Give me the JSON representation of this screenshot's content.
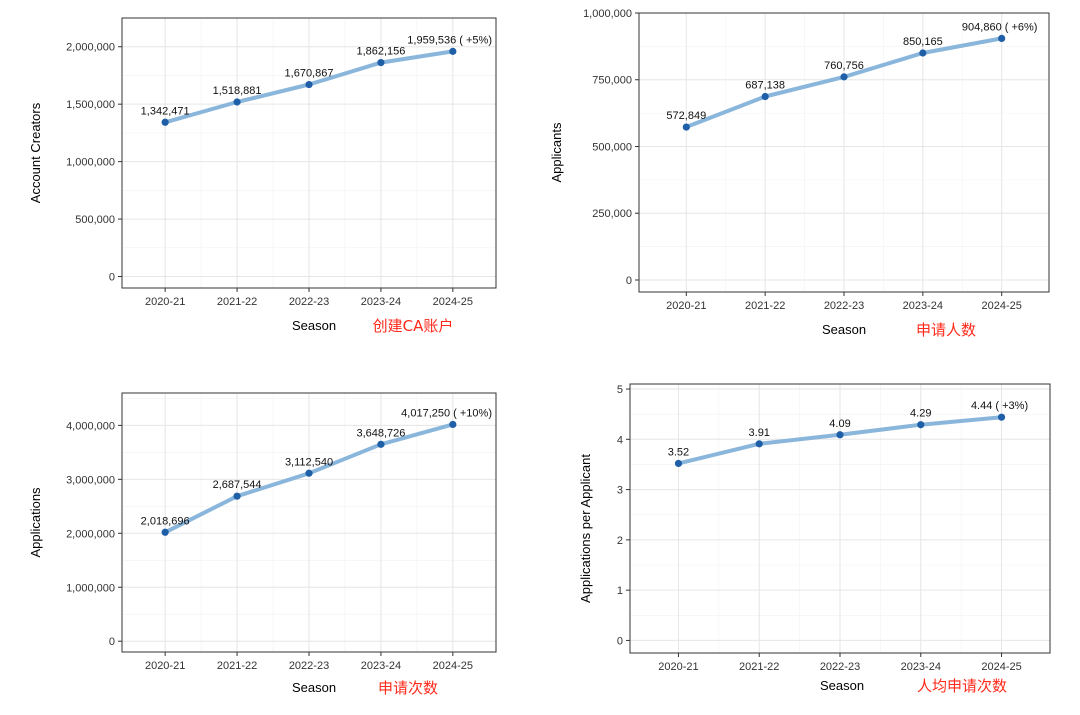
{
  "chart_data": [
    {
      "id": "account-creators",
      "type": "line",
      "categories": [
        "2020-21",
        "2021-22",
        "2022-23",
        "2023-24",
        "2024-25"
      ],
      "values": [
        1342471,
        1518881,
        1670867,
        1862156,
        1959536
      ],
      "data_labels": [
        "1,342,471",
        "1,518,881",
        "1,670,867",
        "1,862,156",
        "1,959,536 ( +5%)"
      ],
      "xlabel": "Season",
      "ylabel": "Account Creators",
      "ylim": [
        -100000,
        2250000
      ],
      "yticks": [
        0,
        500000,
        1000000,
        1500000,
        2000000
      ],
      "ytick_labels": [
        "0",
        "500,000",
        "1,000,000",
        "1,500,000",
        "2,000,000"
      ],
      "caption": "创建CA账户",
      "line_color": "#8ab6dc",
      "point_color": "#1f5fa8",
      "caption_color": "#ff2a1a"
    },
    {
      "id": "applicants",
      "type": "line",
      "categories": [
        "2020-21",
        "2021-22",
        "2022-23",
        "2023-24",
        "2024-25"
      ],
      "values": [
        572849,
        687138,
        760756,
        850165,
        904860
      ],
      "data_labels": [
        "572,849",
        "687,138",
        "760,756",
        "850,165",
        "904,860 ( +6%)"
      ],
      "xlabel": "Season",
      "ylabel": "Applicants",
      "ylim": [
        -45000,
        1000000
      ],
      "yticks": [
        0,
        250000,
        500000,
        750000,
        1000000
      ],
      "ytick_labels": [
        "0",
        "250,000",
        "500,000",
        "750,000",
        "1,000,000"
      ],
      "caption": "申请人数",
      "line_color": "#8ab6dc",
      "point_color": "#1f5fa8",
      "caption_color": "#ff2a1a"
    },
    {
      "id": "applications",
      "type": "line",
      "categories": [
        "2020-21",
        "2021-22",
        "2022-23",
        "2023-24",
        "2024-25"
      ],
      "values": [
        2018696,
        2687544,
        3112540,
        3648726,
        4017250
      ],
      "data_labels": [
        "2,018,696",
        "2,687,544",
        "3,112,540",
        "3,648,726",
        "4,017,250 ( +10%)"
      ],
      "xlabel": "Season",
      "ylabel": "Applications",
      "ylim": [
        -200000,
        4600000
      ],
      "yticks": [
        0,
        1000000,
        2000000,
        3000000,
        4000000
      ],
      "ytick_labels": [
        "0",
        "1,000,000",
        "2,000,000",
        "3,000,000",
        "4,000,000"
      ],
      "caption": "申请次数",
      "line_color": "#8ab6dc",
      "point_color": "#1f5fa8",
      "caption_color": "#ff2a1a"
    },
    {
      "id": "applications-per-applicant",
      "type": "line",
      "categories": [
        "2020-21",
        "2021-22",
        "2022-23",
        "2023-24",
        "2024-25"
      ],
      "values": [
        3.52,
        3.91,
        4.09,
        4.29,
        4.44
      ],
      "data_labels": [
        "3.52",
        "3.91",
        "4.09",
        "4.29",
        "4.44 ( +3%)"
      ],
      "xlabel": "Season",
      "ylabel": "Applications per Applicant",
      "ylim": [
        -0.25,
        5.1
      ],
      "yticks": [
        0,
        1,
        2,
        3,
        4,
        5
      ],
      "ytick_labels": [
        "0",
        "1",
        "2",
        "3",
        "4",
        "5"
      ],
      "caption": "人均申请次数",
      "line_color": "#8ab6dc",
      "point_color": "#1f5fa8",
      "caption_color": "#ff2a1a"
    }
  ]
}
